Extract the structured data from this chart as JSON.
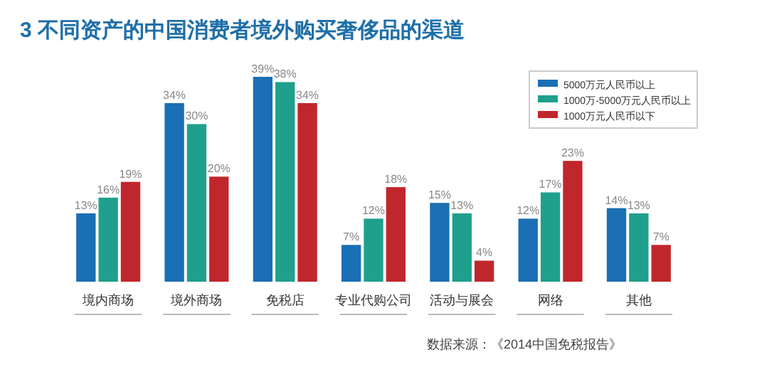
{
  "chart_data": {
    "type": "bar",
    "title": "3 不同资产的中国消费者境外购买奢侈品的渠道",
    "categories": [
      "境内商场",
      "境外商场",
      "免税店",
      "专业代购公司",
      "活动与展会",
      "网络",
      "其他"
    ],
    "series": [
      {
        "name": "5000万元人民币以上",
        "color": "#1a6fb5",
        "values": [
          13,
          34,
          39,
          7,
          15,
          12,
          14
        ],
        "value_labels": [
          "13%",
          "34%",
          "39%",
          "7%",
          "15%",
          "12%",
          "14%"
        ]
      },
      {
        "name": "1000万-5000万元人民币以上",
        "color": "#1fa08c",
        "values": [
          16,
          30,
          38,
          12,
          13,
          17,
          13
        ],
        "value_labels": [
          "16%",
          "30%",
          "38%",
          "12%",
          "13%",
          "17%",
          "13%"
        ]
      },
      {
        "name": "1000万元人民币以下",
        "color": "#c0272d",
        "values": [
          19,
          20,
          34,
          18,
          4,
          23,
          7
        ],
        "value_labels": [
          "19%",
          "20%",
          "34%",
          "18%",
          "4%",
          "23%",
          "7%"
        ]
      }
    ],
    "legend": "top right",
    "annotations": [
      "数据来源：《2014中国免税报告》"
    ]
  }
}
